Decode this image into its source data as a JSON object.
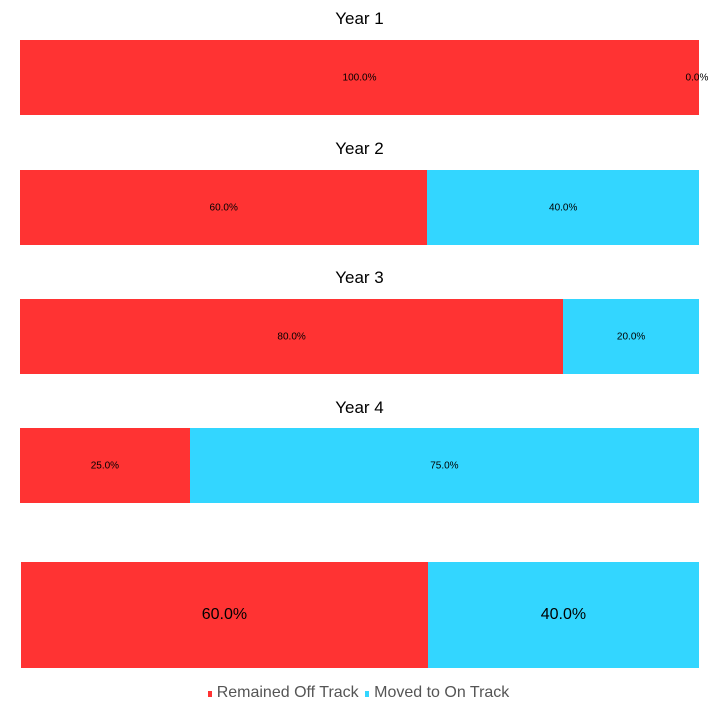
{
  "colors": {
    "off_track": "#ff3333",
    "on_track": "#33d6ff"
  },
  "legend": [
    {
      "label": "Remained Off Track",
      "color": "#ff3333"
    },
    {
      "label": "Moved to On Track",
      "color": "#33d6ff"
    }
  ],
  "chart_data": [
    {
      "type": "bar",
      "title": "Year 1",
      "series": [
        {
          "name": "Remained Off Track",
          "value": 100.0,
          "label": "100.0%"
        },
        {
          "name": "Moved to On Track",
          "value": 0.0,
          "label": "0.0%"
        }
      ]
    },
    {
      "type": "bar",
      "title": "Year 2",
      "series": [
        {
          "name": "Remained Off Track",
          "value": 60.0,
          "label": "60.0%"
        },
        {
          "name": "Moved to On Track",
          "value": 40.0,
          "label": "40.0%"
        }
      ]
    },
    {
      "type": "bar",
      "title": "Year 3",
      "series": [
        {
          "name": "Remained Off Track",
          "value": 80.0,
          "label": "80.0%"
        },
        {
          "name": "Moved to On Track",
          "value": 20.0,
          "label": "20.0%"
        }
      ]
    },
    {
      "type": "bar",
      "title": "Year 4",
      "series": [
        {
          "name": "Remained Off Track",
          "value": 25.0,
          "label": "25.0%"
        },
        {
          "name": "Moved to On Track",
          "value": 75.0,
          "label": "75.0%"
        }
      ]
    },
    {
      "type": "bar",
      "title": "",
      "series": [
        {
          "name": "Remained Off Track",
          "value": 60.0,
          "label": "60.0%"
        },
        {
          "name": "Moved to On Track",
          "value": 40.0,
          "label": "40.0%"
        }
      ]
    }
  ]
}
